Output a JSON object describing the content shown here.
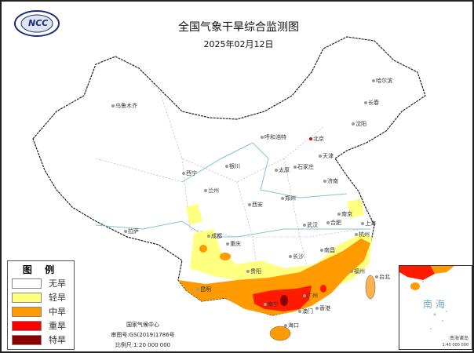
{
  "header": {
    "title": "全国气象干旱综合监测图",
    "date": "2025年02月12日",
    "logo_text": "NCC"
  },
  "legend": {
    "title": "图 例",
    "items": [
      {
        "label": "无旱",
        "color": "#ffffff"
      },
      {
        "label": "轻旱",
        "color": "#ffff80"
      },
      {
        "label": "中旱",
        "color": "#ff9a00"
      },
      {
        "label": "重旱",
        "color": "#ff0000"
      },
      {
        "label": "特旱",
        "color": "#8b0000"
      }
    ]
  },
  "credits": {
    "org": "国家气候中心",
    "approval": "审图号:GS(2019)1786号",
    "scale": "比例尺:1:20 000 000"
  },
  "inset": {
    "sea": "南海",
    "islands": "南海诸岛",
    "scale": "1:40 000 000"
  },
  "cities": [
    "乌鲁木齐",
    "哈尔滨",
    "长春",
    "沈阳",
    "呼和浩特",
    "北京",
    "天津",
    "石家庄",
    "太原",
    "银川",
    "西宁",
    "兰州",
    "济南",
    "郑州",
    "西安",
    "南京",
    "合肥",
    "上海",
    "武汉",
    "杭州",
    "成都",
    "重庆",
    "拉萨",
    "长沙",
    "南昌",
    "贵阳",
    "福州",
    "台北",
    "昆明",
    "南宁",
    "广州",
    "香港",
    "澳门",
    "海口"
  ]
}
